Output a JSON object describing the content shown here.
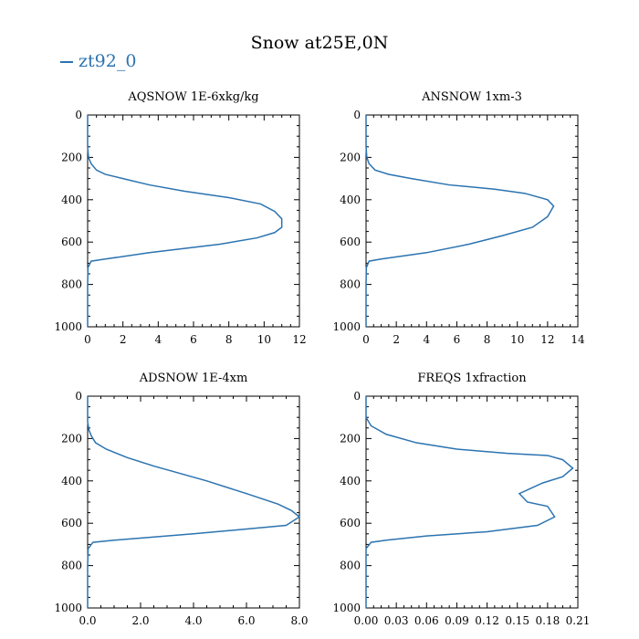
{
  "title": "Snow at25E,0N",
  "legend": {
    "label": "zt92_0",
    "color": "#2b73b0"
  },
  "chart_data": [
    {
      "type": "line",
      "title": "AQSNOW  1E-6xkg/kg",
      "xlim": [
        0,
        12
      ],
      "xticks": [
        "0",
        "2",
        "4",
        "6",
        "8",
        "10",
        "12"
      ],
      "xtick_values": [
        0,
        2,
        4,
        6,
        8,
        10,
        12
      ],
      "ylim": [
        1000,
        0
      ],
      "yticks": [
        "0",
        "200",
        "400",
        "600",
        "800",
        "1000"
      ],
      "ytick_values": [
        0,
        200,
        400,
        600,
        800,
        1000
      ],
      "grid": false,
      "series": [
        {
          "name": "zt92_0",
          "x": [
            0,
            0,
            0.05,
            0.2,
            0.5,
            1.0,
            2.0,
            3.5,
            5.5,
            8.0,
            9.8,
            10.6,
            11.0,
            11.0,
            10.6,
            9.6,
            7.5,
            3.5,
            1.0,
            0.2,
            0.02,
            0,
            0
          ],
          "y": [
            0,
            150,
            200,
            230,
            260,
            280,
            300,
            330,
            360,
            390,
            420,
            455,
            490,
            530,
            555,
            580,
            610,
            650,
            680,
            690,
            720,
            800,
            1000
          ]
        }
      ]
    },
    {
      "type": "line",
      "title": "ANSNOW  1xm-3",
      "xlim": [
        0,
        14
      ],
      "xticks": [
        "0",
        "2",
        "4",
        "6",
        "8",
        "10",
        "12",
        "14"
      ],
      "xtick_values": [
        0,
        2,
        4,
        6,
        8,
        10,
        12,
        14
      ],
      "ylim": [
        1000,
        0
      ],
      "yticks": [
        "0",
        "200",
        "400",
        "600",
        "800",
        "1000"
      ],
      "ytick_values": [
        0,
        200,
        400,
        600,
        800,
        1000
      ],
      "grid": false,
      "series": [
        {
          "name": "zt92_0",
          "x": [
            0,
            0,
            0.05,
            0.2,
            0.6,
            1.5,
            3.0,
            5.5,
            8.5,
            10.5,
            12.0,
            12.4,
            12.0,
            11.0,
            9.0,
            6.8,
            4.0,
            1.0,
            0.2,
            0.02,
            0,
            0
          ],
          "y": [
            0,
            150,
            200,
            230,
            260,
            280,
            300,
            330,
            350,
            370,
            400,
            430,
            480,
            530,
            570,
            610,
            650,
            680,
            690,
            720,
            800,
            1000
          ]
        }
      ]
    },
    {
      "type": "line",
      "title": "ADSNOW  1E-4xm",
      "xlim": [
        0,
        8
      ],
      "xticks": [
        "0.0",
        "2.0",
        "4.0",
        "6.0",
        "8.0"
      ],
      "xtick_values": [
        0,
        2,
        4,
        6,
        8
      ],
      "ylim": [
        1000,
        0
      ],
      "yticks": [
        "0",
        "200",
        "400",
        "600",
        "800",
        "1000"
      ],
      "ytick_values": [
        0,
        200,
        400,
        600,
        800,
        1000
      ],
      "grid": false,
      "series": [
        {
          "name": "zt92_0",
          "x": [
            0,
            0,
            0.05,
            0.15,
            0.3,
            0.7,
            1.5,
            2.5,
            4.5,
            6.0,
            7.2,
            7.7,
            8.0,
            7.5,
            4.0,
            1.0,
            0.2,
            0.02,
            0,
            0
          ],
          "y": [
            0,
            120,
            160,
            190,
            220,
            250,
            290,
            330,
            400,
            460,
            510,
            540,
            570,
            610,
            650,
            680,
            690,
            720,
            800,
            1000
          ]
        }
      ]
    },
    {
      "type": "line",
      "title": "FREQS  1xfraction",
      "xlim": [
        0,
        0.21
      ],
      "xticks": [
        "0.00",
        "0.03",
        "0.06",
        "0.09",
        "0.12",
        "0.15",
        "0.18",
        "0.21"
      ],
      "xtick_values": [
        0,
        0.03,
        0.06,
        0.09,
        0.12,
        0.15,
        0.18,
        0.21
      ],
      "ylim": [
        1000,
        0
      ],
      "yticks": [
        "0",
        "200",
        "400",
        "600",
        "800",
        "1000"
      ],
      "ytick_values": [
        0,
        200,
        400,
        600,
        800,
        1000
      ],
      "grid": false,
      "series": [
        {
          "name": "zt92_0",
          "x": [
            0,
            0,
            0.005,
            0.02,
            0.05,
            0.09,
            0.14,
            0.18,
            0.195,
            0.205,
            0.195,
            0.175,
            0.152,
            0.16,
            0.18,
            0.187,
            0.17,
            0.12,
            0.06,
            0.02,
            0.005,
            0,
            0
          ],
          "y": [
            0,
            100,
            140,
            180,
            220,
            250,
            270,
            280,
            300,
            340,
            380,
            410,
            460,
            500,
            520,
            570,
            610,
            640,
            660,
            680,
            690,
            720,
            1000
          ]
        }
      ]
    }
  ]
}
